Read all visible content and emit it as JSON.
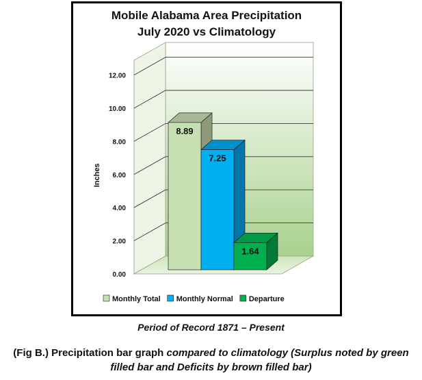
{
  "chart_data": {
    "type": "bar",
    "title_line1": "Mobile Alabama Area Precipitation",
    "title_line2": "July 2020 vs Climatology",
    "ylabel": "Inches",
    "ylim": [
      0,
      12
    ],
    "yticks": [
      "0.00",
      "2.00",
      "4.00",
      "6.00",
      "8.00",
      "10.00",
      "12.00"
    ],
    "grid": true,
    "legend_position": "bottom",
    "series": [
      {
        "name": "Monthly Total",
        "value": 8.89,
        "label": "8.89",
        "color": "#c6e0b4",
        "side": "#8e9a7a",
        "top": "#a9b894"
      },
      {
        "name": "Monthly Normal",
        "value": 7.25,
        "label": "7.25",
        "color": "#00b0f0",
        "side": "#0077a8",
        "top": "#0091cc"
      },
      {
        "name": "Departure",
        "value": 1.64,
        "label": "1.64",
        "color": "#00b050",
        "side": "#007a37",
        "top": "#009944"
      }
    ]
  },
  "captions": {
    "period": "Period of Record 1871 – Present",
    "fig_prefix": "(Fig B.) Precipitation bar graph ",
    "fig_italic": "compared to climatology (Surplus noted by green filled bar and Deficits by brown filled bar)"
  }
}
